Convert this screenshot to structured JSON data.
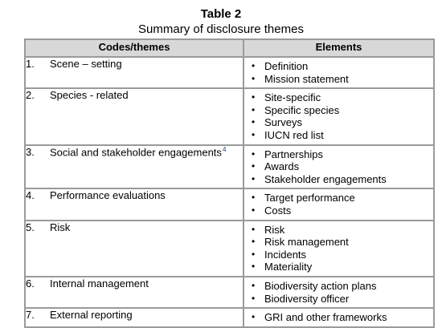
{
  "table": {
    "label": "Table 2",
    "caption": "Summary of disclosure themes",
    "headers": [
      "Codes/themes",
      "Elements"
    ],
    "rows": [
      {
        "num": "1.",
        "theme": "Scene – setting",
        "note": "",
        "elements": [
          "Definition",
          "Mission statement"
        ]
      },
      {
        "num": "2.",
        "theme": "Species - related",
        "note": "",
        "elements": [
          "Site-specific",
          "Specific species",
          "Surveys",
          "IUCN red list"
        ]
      },
      {
        "num": "3.",
        "theme": "Social and stakeholder engagements",
        "note": "4",
        "elements": [
          "Partnerships",
          "Awards",
          "Stakeholder engagements"
        ]
      },
      {
        "num": "4.",
        "theme": "Performance evaluations",
        "note": "",
        "elements": [
          "Target performance",
          "Costs"
        ]
      },
      {
        "num": "5.",
        "theme": "Risk",
        "note": "",
        "elements": [
          "Risk",
          "Risk management",
          "Incidents",
          "Materiality"
        ]
      },
      {
        "num": "6.",
        "theme": "Internal management",
        "note": "",
        "elements": [
          "Biodiversity action plans",
          "Biodiversity officer"
        ]
      },
      {
        "num": "7.",
        "theme": "External reporting",
        "note": "",
        "elements": [
          "GRI and other frameworks"
        ]
      }
    ]
  }
}
